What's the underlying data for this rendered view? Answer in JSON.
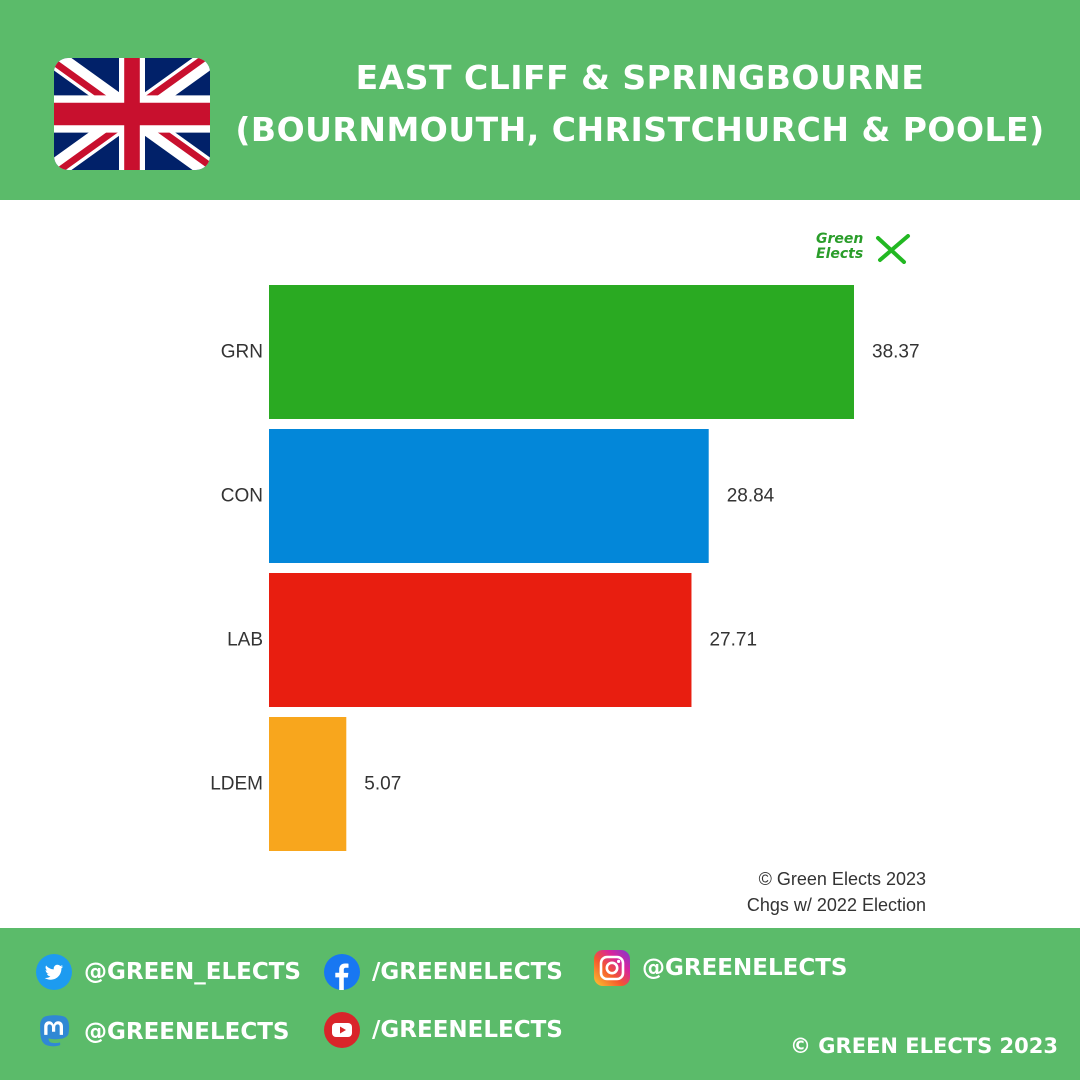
{
  "header": {
    "title_line1": "EAST CLIFF & SPRINGBOURNE",
    "title_line2": "(BOURNMOUTH, CHRISTCHURCH & POOLE)"
  },
  "logo": {
    "line1": "Green",
    "line2": "Elects"
  },
  "chart_data": {
    "type": "bar",
    "orientation": "horizontal",
    "categories": [
      "GRN",
      "CON",
      "LAB",
      "LDEM"
    ],
    "values": [
      38.37,
      28.84,
      27.71,
      5.07
    ],
    "colors": [
      "#2aaa22",
      "#0387d9",
      "#e81e10",
      "#f8a61d"
    ],
    "value_labels": [
      "38.37",
      "28.84",
      "27.71",
      "5.07"
    ],
    "xlim": [
      0,
      38.37
    ],
    "grid": false,
    "legend": "none"
  },
  "credits": {
    "line1": "© Green Elects 2023",
    "line2": "Chgs w/ 2022 Election"
  },
  "footer": {
    "twitter": "@GREEN_ELECTS",
    "facebook": "/GREENELECTS",
    "instagram": "@GREENELECTS",
    "mastodon": "@GREENELECTS",
    "youtube": "/GREENELECTS",
    "copyright": "© GREEN ELECTS 2023"
  },
  "colors": {
    "background_green": "#5bbb6a",
    "panel": "#ffffff",
    "twitter_blue": "#1d9bf0",
    "facebook_blue": "#1877f2",
    "youtube_red": "#d9252a",
    "mastodon_blue": "#3088d4"
  },
  "icons": [
    "uk-flag-icon",
    "twitter-icon",
    "facebook-icon",
    "instagram-icon",
    "mastodon-icon",
    "youtube-icon"
  ]
}
